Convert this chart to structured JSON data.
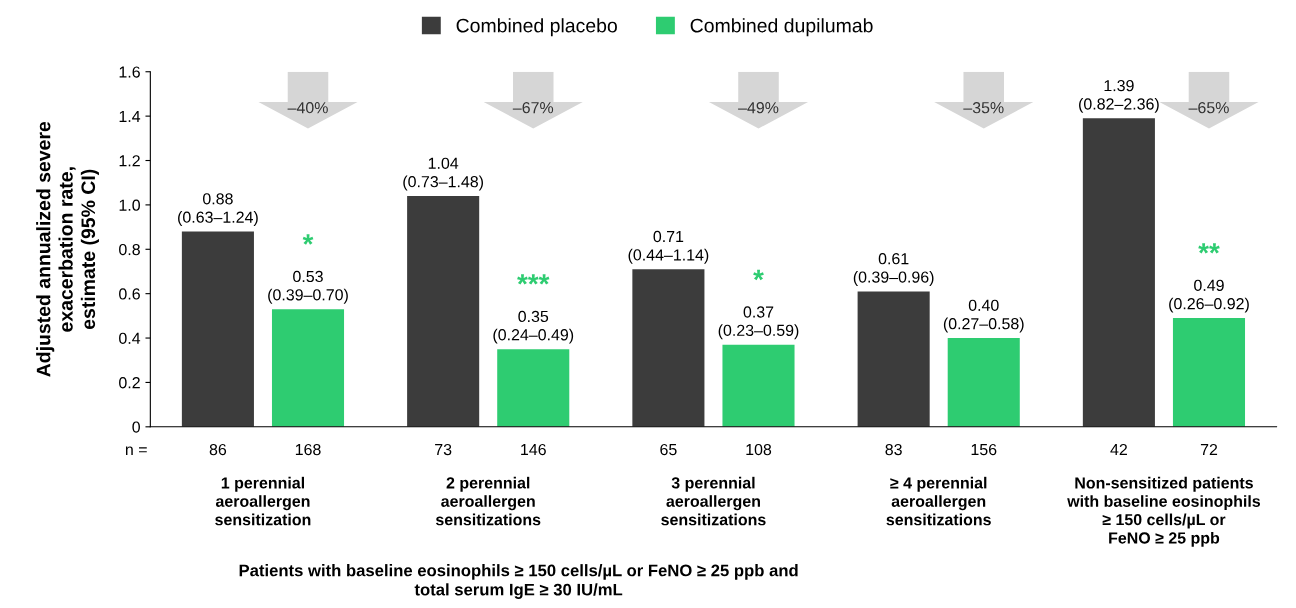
{
  "chart_data": {
    "type": "bar",
    "ylabel": "Adjusted annualized severe\nexacerbation rate,\nestimate (95% CI)",
    "xlabel": "Patients with baseline eosinophils ≥ 150 cells/µL or FeNO ≥ 25 ppb and\ntotal serum IgE ≥ 30 IU/mL",
    "categories": [
      "1 perennial\naeroallergen\nsensitization",
      "2 perennial\naeroallergen\nsensitizations",
      "3 perennial\naeroallergen\nsensitizations",
      "≥ 4 perennial\naeroallergen\nsensitizations",
      "Non-sensitized patients\nwith baseline eosinophils\n≥ 150 cells/µL or\nFeNO ≥ 25 ppb"
    ],
    "series": [
      {
        "name": "Combined placebo",
        "color": "#3c3c3c",
        "values": [
          0.88,
          1.04,
          0.71,
          0.61,
          1.39
        ],
        "value_labels": [
          "0.88\n(0.63–1.24)",
          "1.04\n(0.73–1.48)",
          "0.71\n(0.44–1.14)",
          "0.61\n(0.39–0.96)",
          "1.39\n(0.82–2.36)"
        ]
      },
      {
        "name": "Combined dupilumab",
        "color": "#2ecc71",
        "values": [
          0.53,
          0.35,
          0.37,
          0.4,
          0.49
        ],
        "value_labels": [
          "*\n0.53\n(0.39–0.70)",
          "***\n0.35\n(0.24–0.49)",
          "*\n0.37\n(0.23–0.59)",
          "0.40\n(0.27–0.58)",
          "**\n0.49\n(0.26–0.92)"
        ]
      }
    ],
    "ylim": [
      0,
      1.6
    ],
    "yticks": [
      0,
      0.2,
      0.4,
      0.6,
      0.8,
      {
        "value": 1,
        "label": "1.0"
      },
      1.2,
      1.4,
      1.6
    ],
    "grid": false,
    "legend": "top",
    "annotations": [
      "n =",
      "86",
      "168",
      "73",
      "146",
      "65",
      "108",
      "83",
      "156",
      "42",
      "72",
      "–40%",
      "–67%",
      "–49%",
      "–35%",
      "–65%"
    ]
  }
}
